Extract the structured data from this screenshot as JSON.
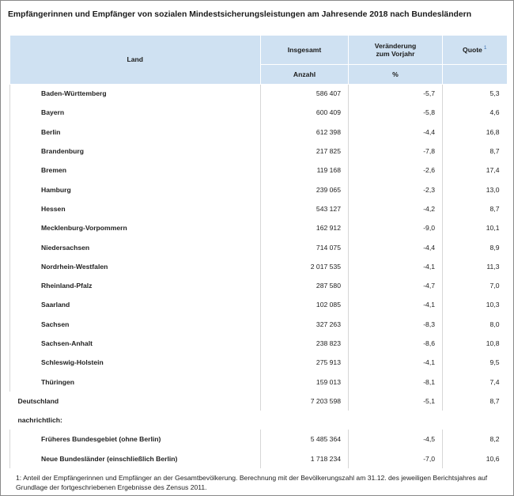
{
  "title": "Empfängerinnen und Empfänger von sozialen Mindestsicherungsleistungen am Jahresende 2018 nach Bundesländern",
  "header": {
    "land": "Land",
    "insgesamt": "Insgesamt",
    "veraenderung_line1": "Veränderung",
    "veraenderung_line2": "zum Vorjahr",
    "quote": "Quote",
    "quote_note": "1",
    "unit_anzahl": "Anzahl",
    "unit_prozent": "%"
  },
  "states": [
    {
      "name": "Baden-Württemberg",
      "anzahl": "586 407",
      "veraenderung": "-5,7",
      "quote": "5,3"
    },
    {
      "name": "Bayern",
      "anzahl": "600 409",
      "veraenderung": "-5,8",
      "quote": "4,6"
    },
    {
      "name": "Berlin",
      "anzahl": "612 398",
      "veraenderung": "-4,4",
      "quote": "16,8"
    },
    {
      "name": "Brandenburg",
      "anzahl": "217 825",
      "veraenderung": "-7,8",
      "quote": "8,7"
    },
    {
      "name": "Bremen",
      "anzahl": "119 168",
      "veraenderung": "-2,6",
      "quote": "17,4"
    },
    {
      "name": "Hamburg",
      "anzahl": "239 065",
      "veraenderung": "-2,3",
      "quote": "13,0"
    },
    {
      "name": "Hessen",
      "anzahl": "543 127",
      "veraenderung": "-4,2",
      "quote": "8,7"
    },
    {
      "name": "Mecklenburg-Vorpommern",
      "anzahl": "162 912",
      "veraenderung": "-9,0",
      "quote": "10,1"
    },
    {
      "name": "Niedersachsen",
      "anzahl": "714 075",
      "veraenderung": "-4,4",
      "quote": "8,9"
    },
    {
      "name": "Nordrhein-Westfalen",
      "anzahl": "2 017 535",
      "veraenderung": "-4,1",
      "quote": "11,3"
    },
    {
      "name": "Rheinland-Pfalz",
      "anzahl": "287 580",
      "veraenderung": "-4,7",
      "quote": "7,0"
    },
    {
      "name": "Saarland",
      "anzahl": "102 085",
      "veraenderung": "-4,1",
      "quote": "10,3"
    },
    {
      "name": "Sachsen",
      "anzahl": "327 263",
      "veraenderung": "-8,3",
      "quote": "8,0"
    },
    {
      "name": "Sachsen-Anhalt",
      "anzahl": "238 823",
      "veraenderung": "-8,6",
      "quote": "10,8"
    },
    {
      "name": "Schleswig-Holstein",
      "anzahl": "275 913",
      "veraenderung": "-4,1",
      "quote": "9,5"
    },
    {
      "name": "Thüringen",
      "anzahl": "159 013",
      "veraenderung": "-8,1",
      "quote": "7,4"
    }
  ],
  "total": {
    "name": "Deutschland",
    "anzahl": "7 203 598",
    "veraenderung": "-5,1",
    "quote": "8,7"
  },
  "section_label": "nachrichtlich:",
  "sub_rows": [
    {
      "name": "Früheres Bundesgebiet (ohne Berlin)",
      "anzahl": "5 485 364",
      "veraenderung": "-4,5",
      "quote": "8,2"
    },
    {
      "name": "Neue Bundesländer (einschließlich Berlin)",
      "anzahl": "1 718 234",
      "veraenderung": "-7,0",
      "quote": "10,6"
    }
  ],
  "footnote": "1: Anteil der Empfängerinnen und Empfänger an der Gesamtbevölkerung. Berechnung mit der Bevölkerungszahl am 31.12. des jeweiligen Berichtsjahres auf Grundlage der fortgeschriebenen Ergebnisse des Zensus 2011."
}
